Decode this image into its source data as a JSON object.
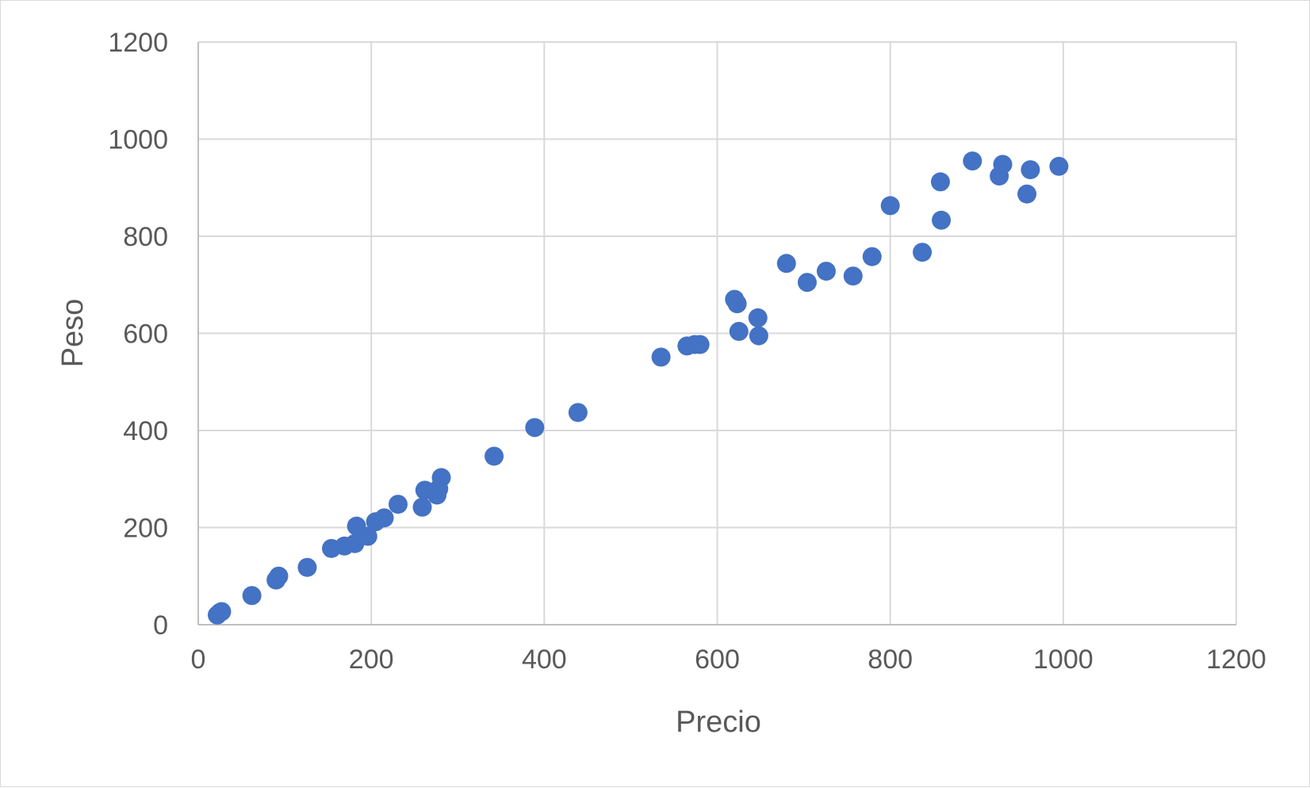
{
  "chart_data": {
    "type": "scatter",
    "title": "",
    "xlabel": "Precio",
    "ylabel": "Peso",
    "xlim": [
      0,
      1200
    ],
    "ylim": [
      0,
      1200
    ],
    "x_ticks": [
      "0",
      "200",
      "400",
      "600",
      "800",
      "1000",
      "1200"
    ],
    "y_ticks": [
      "0",
      "200",
      "400",
      "600",
      "800",
      "1000",
      "1200"
    ],
    "grid": true,
    "legend": "none",
    "marker_color": "#4472c4",
    "series": [
      {
        "points": [
          [
            22,
            20
          ],
          [
            25,
            25
          ],
          [
            27,
            27
          ],
          [
            62,
            60
          ],
          [
            90,
            92
          ],
          [
            93,
            100
          ],
          [
            126,
            118
          ],
          [
            154,
            157
          ],
          [
            169,
            162
          ],
          [
            181,
            167
          ],
          [
            183,
            203
          ],
          [
            196,
            182
          ],
          [
            205,
            212
          ],
          [
            215,
            220
          ],
          [
            231,
            248
          ],
          [
            259,
            242
          ],
          [
            262,
            277
          ],
          [
            276,
            267
          ],
          [
            278,
            280
          ],
          [
            281,
            303
          ],
          [
            342,
            347
          ],
          [
            389,
            406
          ],
          [
            439,
            437
          ],
          [
            535,
            551
          ],
          [
            565,
            574
          ],
          [
            574,
            577
          ],
          [
            580,
            577
          ],
          [
            620,
            670
          ],
          [
            623,
            661
          ],
          [
            625,
            604
          ],
          [
            647,
            632
          ],
          [
            648,
            595
          ],
          [
            680,
            744
          ],
          [
            704,
            705
          ],
          [
            726,
            728
          ],
          [
            757,
            718
          ],
          [
            779,
            758
          ],
          [
            800,
            863
          ],
          [
            837,
            767
          ],
          [
            858,
            912
          ],
          [
            859,
            833
          ],
          [
            895,
            955
          ],
          [
            926,
            924
          ],
          [
            930,
            948
          ],
          [
            958,
            887
          ],
          [
            962,
            937
          ],
          [
            995,
            944
          ]
        ]
      }
    ]
  }
}
